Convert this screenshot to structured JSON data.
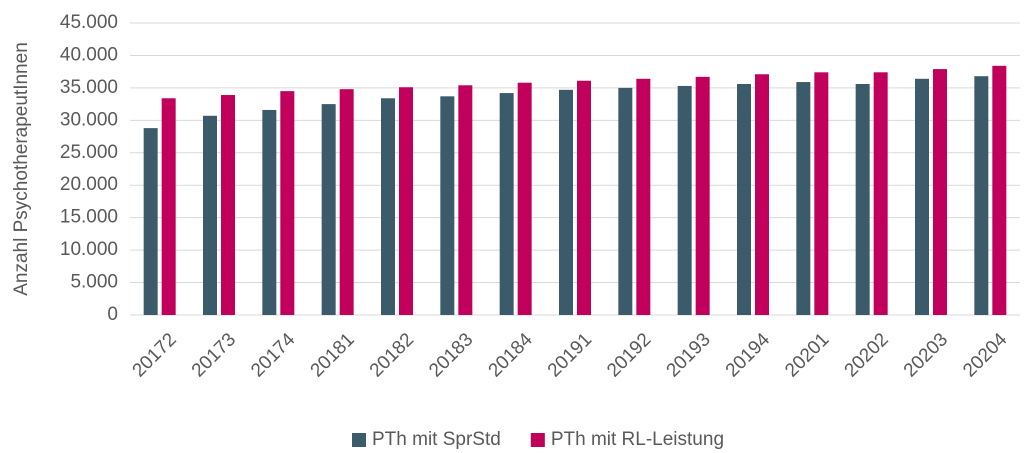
{
  "chart_data": {
    "type": "bar",
    "y_label": "Anzahl PsychotherapeutInnen",
    "categories": [
      "20172",
      "20173",
      "20174",
      "20181",
      "20182",
      "20183",
      "20184",
      "20191",
      "20192",
      "20193",
      "20194",
      "20201",
      "20202",
      "20203",
      "20204"
    ],
    "series": [
      {
        "name": "PTh mit SprStd",
        "color": "#3b5a6a",
        "values": [
          28800,
          30700,
          31600,
          32500,
          33400,
          33700,
          34200,
          34700,
          35000,
          35300,
          35600,
          35900,
          35600,
          36400,
          36800
        ]
      },
      {
        "name": "PTh mit RL-Leistung",
        "color": "#c0005a",
        "values": [
          33400,
          33900,
          34500,
          34800,
          35100,
          35400,
          35800,
          36100,
          36400,
          36700,
          37100,
          37400,
          37400,
          37900,
          38400
        ]
      }
    ],
    "ylim": [
      0,
      45000
    ],
    "yticks": [
      0,
      {
        "value": 5000,
        "label": "5.000"
      },
      {
        "value": 10000,
        "label": "10.000"
      },
      {
        "value": 15000,
        "label": "15.000"
      },
      {
        "value": 20000,
        "label": "20.000"
      },
      {
        "value": 25000,
        "label": "25.000"
      },
      {
        "value": 30000,
        "label": "30.000"
      },
      {
        "value": 35000,
        "label": "35.000"
      },
      {
        "value": 40000,
        "label": "40.000"
      },
      {
        "value": 45000,
        "label": "45.000"
      }
    ],
    "grid": true,
    "legend": "bottom"
  }
}
